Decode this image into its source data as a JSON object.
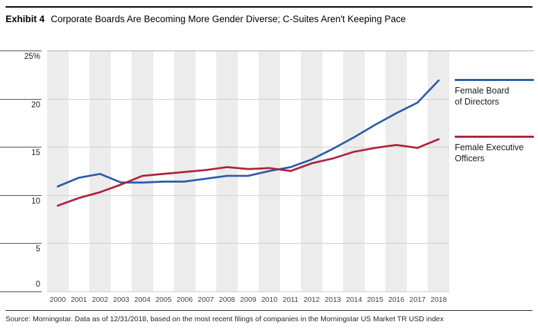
{
  "title": {
    "exhibit_label": "Exhibit 4",
    "text": "Corporate Boards Are Becoming More Gender Diverse; C-Suites Aren't Keeping Pace"
  },
  "source_note": "Source: Morningstar. Data as of 12/31/2018, based on the most recent filings of companies in the Morningstar US Market TR USD index",
  "colors": {
    "board_line": "#2a5ca8",
    "executive_line": "#b0213c",
    "band_gray": "#ececec",
    "gridline": "#d0d0d0",
    "top_gridline": "#adadad",
    "tick_line": "#4d4d4d",
    "text": "#1a1a1a"
  },
  "chart_data": {
    "type": "line",
    "x": [
      2000,
      2001,
      2002,
      2003,
      2004,
      2005,
      2006,
      2007,
      2008,
      2009,
      2010,
      2011,
      2012,
      2013,
      2014,
      2015,
      2016,
      2017,
      2018
    ],
    "series": [
      {
        "name": "Female Board of Directors",
        "legend_lines": [
          "Female Board",
          "of Directors"
        ],
        "color": "#2a5ca8",
        "values": [
          10.9,
          11.8,
          12.2,
          11.3,
          11.3,
          11.4,
          11.4,
          11.7,
          12.0,
          12.0,
          12.5,
          12.9,
          13.7,
          14.8,
          16.0,
          17.3,
          18.5,
          19.6,
          21.9
        ]
      },
      {
        "name": "Female Executive Officers",
        "legend_lines": [
          "Female Executive",
          "Officers"
        ],
        "color": "#b0213c",
        "values": [
          8.9,
          9.7,
          10.3,
          11.1,
          12.0,
          12.2,
          12.4,
          12.6,
          12.9,
          12.7,
          12.8,
          12.5,
          13.3,
          13.8,
          14.5,
          14.9,
          15.2,
          14.9,
          15.8
        ]
      }
    ],
    "ylim": [
      0,
      25
    ],
    "yticks": [
      25,
      20,
      15,
      10,
      5,
      0
    ],
    "ytick_labels": [
      "25%",
      "20",
      "15",
      "10",
      "5",
      "0"
    ],
    "grid": "horizontal",
    "background_bands": "alternating vertical year bands, even years shaded",
    "legend_position": "right",
    "xlabel": "",
    "ylabel": ""
  }
}
